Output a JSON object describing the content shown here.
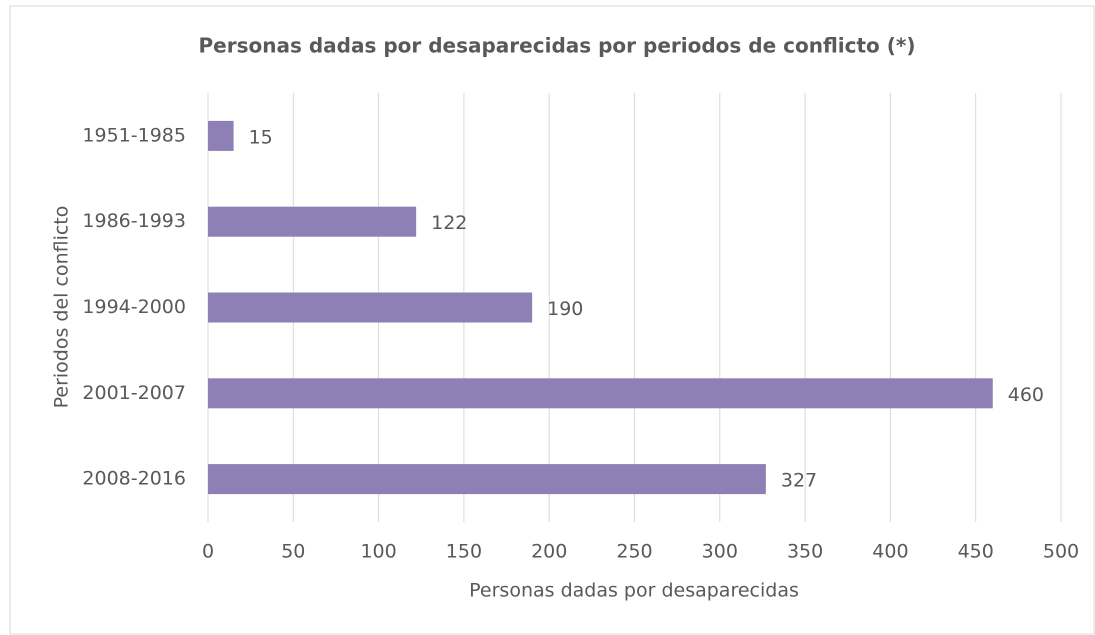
{
  "chart_data": {
    "type": "bar",
    "orientation": "horizontal",
    "title": "Personas dadas por desaparecidas por periodos  de conflicto (*)",
    "x_label": "Personas dadas por desaparecidas",
    "y_label": "Periodos del conflicto",
    "categories": [
      "1951-1985",
      "1986-1993",
      "1994-2000",
      "2001-2007",
      "2008-2016"
    ],
    "values": [
      15,
      122,
      190,
      460,
      327
    ],
    "color": "#8e7fb5",
    "xlim": [
      0,
      500
    ],
    "xticks": [
      0,
      50,
      100,
      150,
      200,
      250,
      300,
      350,
      400,
      450,
      500
    ],
    "grid": true,
    "data_labels": true
  }
}
